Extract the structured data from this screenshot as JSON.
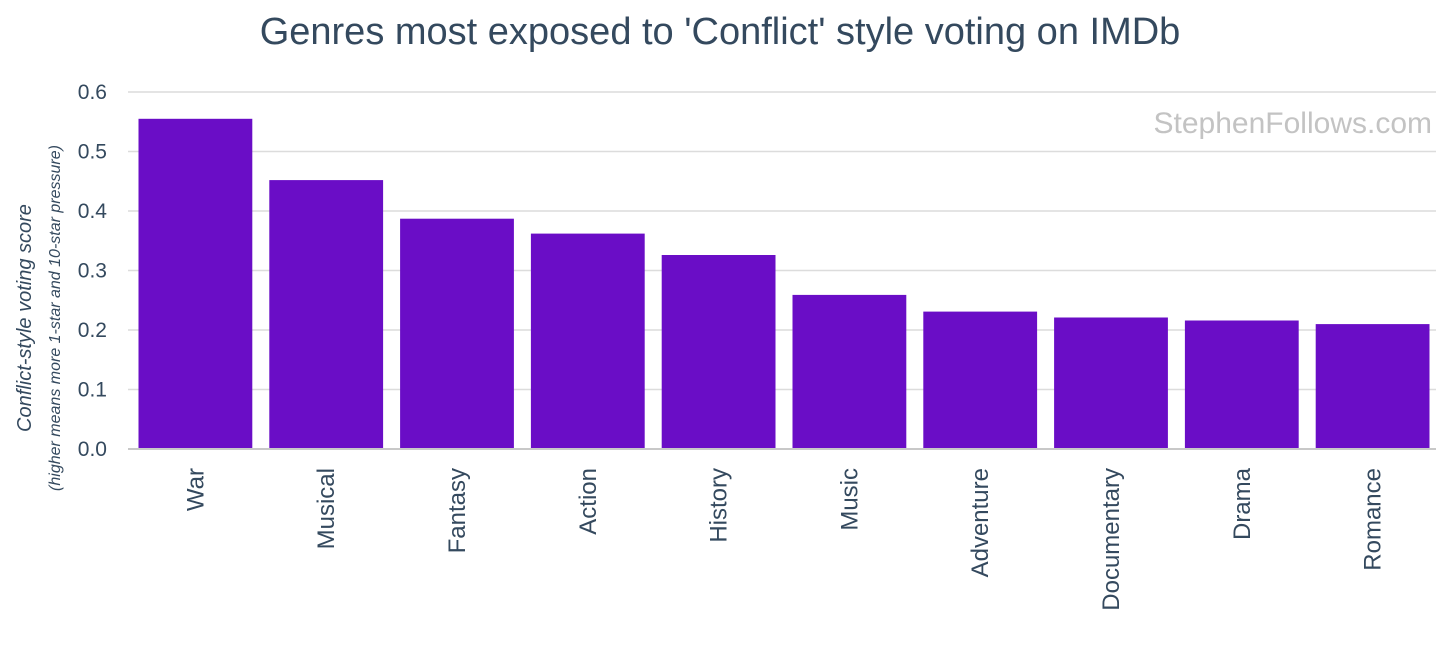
{
  "chart_data": {
    "type": "bar",
    "title": "Genres most exposed to 'Conflict' style voting on IMDb",
    "watermark": "StephenFollows.com",
    "xlabel": "",
    "ylabel": "Conflict-style voting score",
    "ylabel_sub": "(higher means more 1-star and 10-star pressure)",
    "ylim": [
      0,
      0.6
    ],
    "yticks": [
      "0.0",
      "0.1",
      "0.2",
      "0.3",
      "0.4",
      "0.5",
      "0.6"
    ],
    "grid": true,
    "bar_color": "#6a0dc6",
    "categories": [
      "War",
      "Musical",
      "Fantasy",
      "Action",
      "History",
      "Music",
      "Adventure",
      "Documentary",
      "Drama",
      "Romance"
    ],
    "values": [
      0.555,
      0.452,
      0.387,
      0.362,
      0.326,
      0.259,
      0.231,
      0.221,
      0.216,
      0.21
    ]
  }
}
